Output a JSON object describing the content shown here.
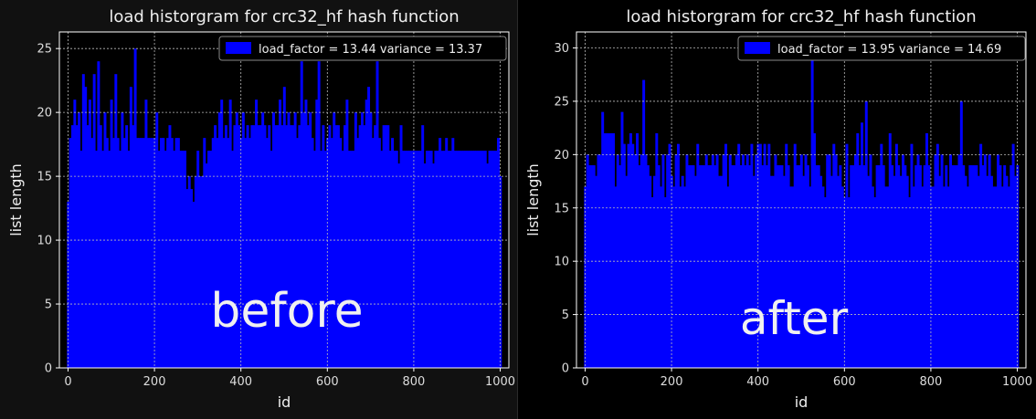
{
  "chart_data": [
    {
      "type": "bar",
      "title": "load historgram for crc32_hf hash function",
      "xlabel": "id",
      "ylabel": "list length",
      "legend": {
        "label": "load_factor = 13.44 variance = 13.37",
        "position": "top-right"
      },
      "annotation": "before",
      "xlim": [
        -20,
        1020
      ],
      "ylim": [
        0,
        26.3
      ],
      "xticks": [
        0,
        200,
        400,
        600,
        800,
        1000
      ],
      "yticks": [
        0,
        5,
        10,
        15,
        20,
        25
      ],
      "grid": true,
      "bar_color": "#0000ff",
      "x_start": 0,
      "x_step": 5,
      "values": [
        13,
        18,
        19,
        21,
        19,
        20,
        17,
        23,
        22,
        19,
        21,
        18,
        23,
        17,
        24,
        19,
        17,
        20,
        18,
        17,
        21,
        18,
        23,
        18,
        17,
        20,
        18,
        19,
        17,
        22,
        19,
        25,
        18,
        18,
        18,
        18,
        21,
        18,
        18,
        18,
        18,
        20,
        17,
        18,
        18,
        17,
        18,
        19,
        18,
        17,
        18,
        18,
        17,
        17,
        17,
        14,
        15,
        14,
        13,
        15,
        17,
        15,
        15,
        18,
        16,
        17,
        17,
        18,
        19,
        18,
        20,
        21,
        18,
        19,
        18,
        21,
        17,
        19,
        20,
        19,
        18,
        20,
        18,
        19,
        18,
        19,
        19,
        21,
        19,
        19,
        20,
        19,
        18,
        19,
        17,
        20,
        19,
        19,
        21,
        19,
        22,
        19,
        20,
        19,
        19,
        20,
        18,
        19,
        24,
        20,
        21,
        19,
        20,
        18,
        17,
        21,
        24,
        17,
        19,
        17,
        18,
        19,
        18,
        20,
        19,
        19,
        18,
        17,
        19,
        21,
        17,
        17,
        17,
        20,
        18,
        19,
        20,
        19,
        21,
        22,
        20,
        18,
        19,
        24,
        18,
        17,
        19,
        19,
        19,
        17,
        18,
        17,
        17,
        16,
        19,
        17,
        17,
        17,
        17,
        17,
        17,
        17,
        17,
        17,
        19,
        16,
        17,
        17,
        17,
        16,
        17,
        17,
        18,
        17,
        17,
        18,
        17,
        17,
        18,
        17,
        17,
        17,
        17,
        17,
        17,
        17,
        17,
        17,
        17,
        17,
        17,
        17,
        17,
        17,
        16,
        17,
        17,
        17,
        17,
        18,
        15
      ]
    },
    {
      "type": "bar",
      "title": "load historgram for crc32_hf hash function",
      "xlabel": "id",
      "ylabel": "list length",
      "legend": {
        "label": "load_factor = 13.95 variance = 14.69",
        "position": "top-right"
      },
      "annotation": "after",
      "xlim": [
        -20,
        1020
      ],
      "ylim": [
        0,
        31.5
      ],
      "xticks": [
        0,
        200,
        400,
        600,
        800,
        1000
      ],
      "yticks": [
        0,
        5,
        10,
        15,
        20,
        25,
        30
      ],
      "grid": true,
      "bar_color": "#0000ff",
      "x_start": 0,
      "x_step": 5,
      "values": [
        17,
        20,
        19,
        19,
        19,
        18,
        20,
        20,
        24,
        22,
        22,
        22,
        22,
        22,
        17,
        20,
        19,
        24,
        21,
        18,
        21,
        22,
        21,
        20,
        22,
        19,
        20,
        27,
        20,
        19,
        18,
        16,
        18,
        22,
        19,
        17,
        20,
        16,
        20,
        21,
        18,
        17,
        20,
        21,
        17,
        18,
        17,
        20,
        19,
        19,
        19,
        18,
        21,
        19,
        19,
        19,
        20,
        19,
        19,
        20,
        19,
        20,
        18,
        18,
        20,
        21,
        17,
        20,
        19,
        19,
        20,
        21,
        19,
        20,
        19,
        20,
        19,
        21,
        18,
        20,
        21,
        21,
        19,
        21,
        19,
        21,
        18,
        18,
        20,
        19,
        19,
        19,
        18,
        21,
        19,
        17,
        17,
        21,
        19,
        19,
        20,
        18,
        20,
        19,
        17,
        29,
        22,
        19,
        19,
        18,
        17,
        16,
        20,
        20,
        18,
        21,
        20,
        18,
        19,
        17,
        16,
        21,
        16,
        19,
        19,
        20,
        22,
        19,
        23,
        19,
        25,
        18,
        20,
        17,
        16,
        19,
        19,
        21,
        19,
        17,
        17,
        22,
        19,
        18,
        21,
        19,
        18,
        20,
        19,
        18,
        16,
        21,
        17,
        19,
        20,
        19,
        17,
        19,
        22,
        19,
        17,
        17,
        20,
        21,
        18,
        20,
        17,
        19,
        17,
        20,
        19,
        19,
        19,
        20,
        25,
        19,
        18,
        17,
        19,
        19,
        19,
        19,
        18,
        21,
        19,
        20,
        18,
        20,
        18,
        17,
        17,
        20,
        19,
        17,
        19,
        18,
        17,
        19,
        21,
        18,
        19
      ]
    }
  ]
}
